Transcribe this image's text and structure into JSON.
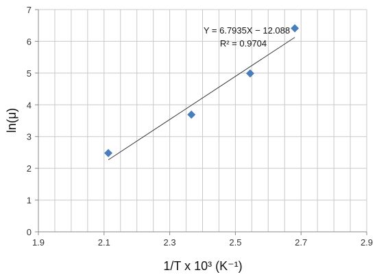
{
  "chart_data": {
    "type": "scatter",
    "xlabel": "1/T x 10³ (K⁻¹)",
    "ylabel": "ln(μ)",
    "xlim": [
      1.9,
      2.9
    ],
    "ylim": [
      0,
      7
    ],
    "x_ticks": [
      1.9,
      2.1,
      2.3,
      2.5,
      2.7,
      2.9
    ],
    "y_ticks": [
      0,
      1,
      2,
      3,
      4,
      5,
      6,
      7
    ],
    "x_tick_labels": [
      "1.9",
      "2.1",
      "2.3",
      "2.5",
      "2.7",
      "2.9"
    ],
    "y_tick_labels": [
      "0",
      "1",
      "2",
      "3",
      "4",
      "5",
      "6",
      "7"
    ],
    "grid": true,
    "series": [
      {
        "marker": "diamond",
        "color": "#4a7ebb",
        "x": [
          2.113,
          2.366,
          2.545,
          2.681
        ],
        "y": [
          2.48,
          3.69,
          4.99,
          6.41
        ]
      }
    ],
    "trendline": {
      "slope": 6.7935,
      "intercept": -12.088,
      "x_range": [
        2.113,
        2.681
      ],
      "equation_text": "Y = 6.7935X − 12.088",
      "r2_text": "R² = 0.9704"
    },
    "grid_color": "#c8c8c8",
    "axis_color": "#888888"
  }
}
